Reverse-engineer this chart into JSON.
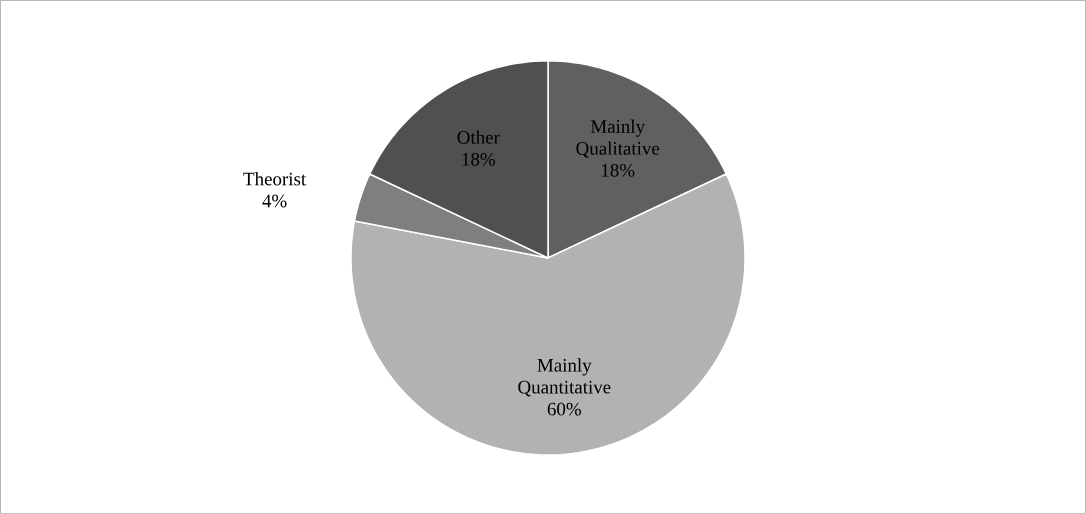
{
  "chart_data": {
    "type": "pie",
    "categories": [
      "Mainly Qualitative",
      "Mainly Quantitative",
      "Theorist",
      "Other"
    ],
    "values": [
      18,
      60,
      4,
      18
    ],
    "value_labels": [
      "18%",
      "60%",
      "4%",
      "18%"
    ],
    "colors": [
      "#606060",
      "#b2b2b2",
      "#7f7f7f",
      "#505050"
    ]
  }
}
